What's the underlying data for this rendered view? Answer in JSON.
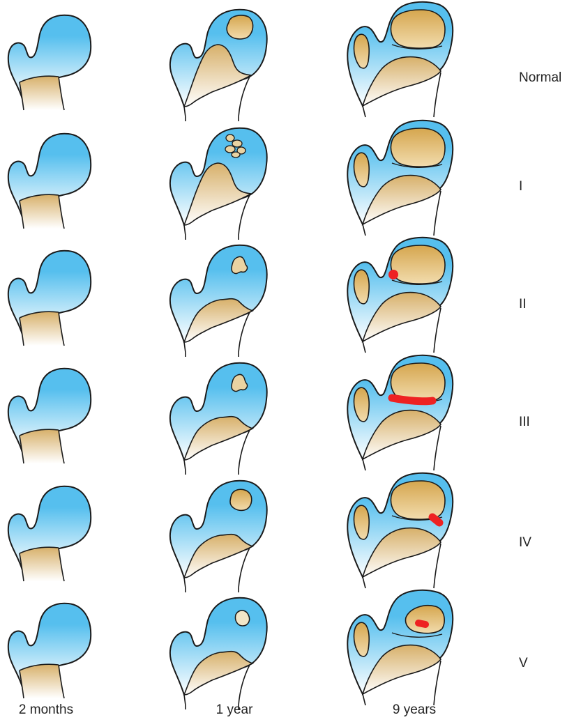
{
  "colors": {
    "cartilage_top": "#56bfee",
    "cartilage_bottom": "#ffffff",
    "bone_top": "#d7b06a",
    "bone_bottom": "#ffffff",
    "ossification_core": "#d5a64e",
    "outline": "#1a1a1a",
    "growth_disturbance": "#ee2222"
  },
  "columns": [
    {
      "label": "2 months"
    },
    {
      "label": "1 year"
    },
    {
      "label": "9 years"
    }
  ],
  "rows": [
    {
      "label": "Normal",
      "stage_1y": "single-core",
      "stage_9y": "normal",
      "damage": "none"
    },
    {
      "label": "I",
      "stage_1y": "fragmented-core",
      "stage_9y": "normal",
      "damage": "none"
    },
    {
      "label": "II",
      "stage_1y": "irregular-core",
      "stage_9y": "lateral-physeal-arrest",
      "damage": "spot"
    },
    {
      "label": "III",
      "stage_1y": "irregular-core",
      "stage_9y": "central-physeal-arrest",
      "damage": "bar"
    },
    {
      "label": "IV",
      "stage_1y": "single-core",
      "stage_9y": "medial-physeal-arrest",
      "damage": "medial"
    },
    {
      "label": "V",
      "stage_1y": "small-core",
      "stage_9y": "head-necrosis",
      "damage": "small"
    }
  ]
}
